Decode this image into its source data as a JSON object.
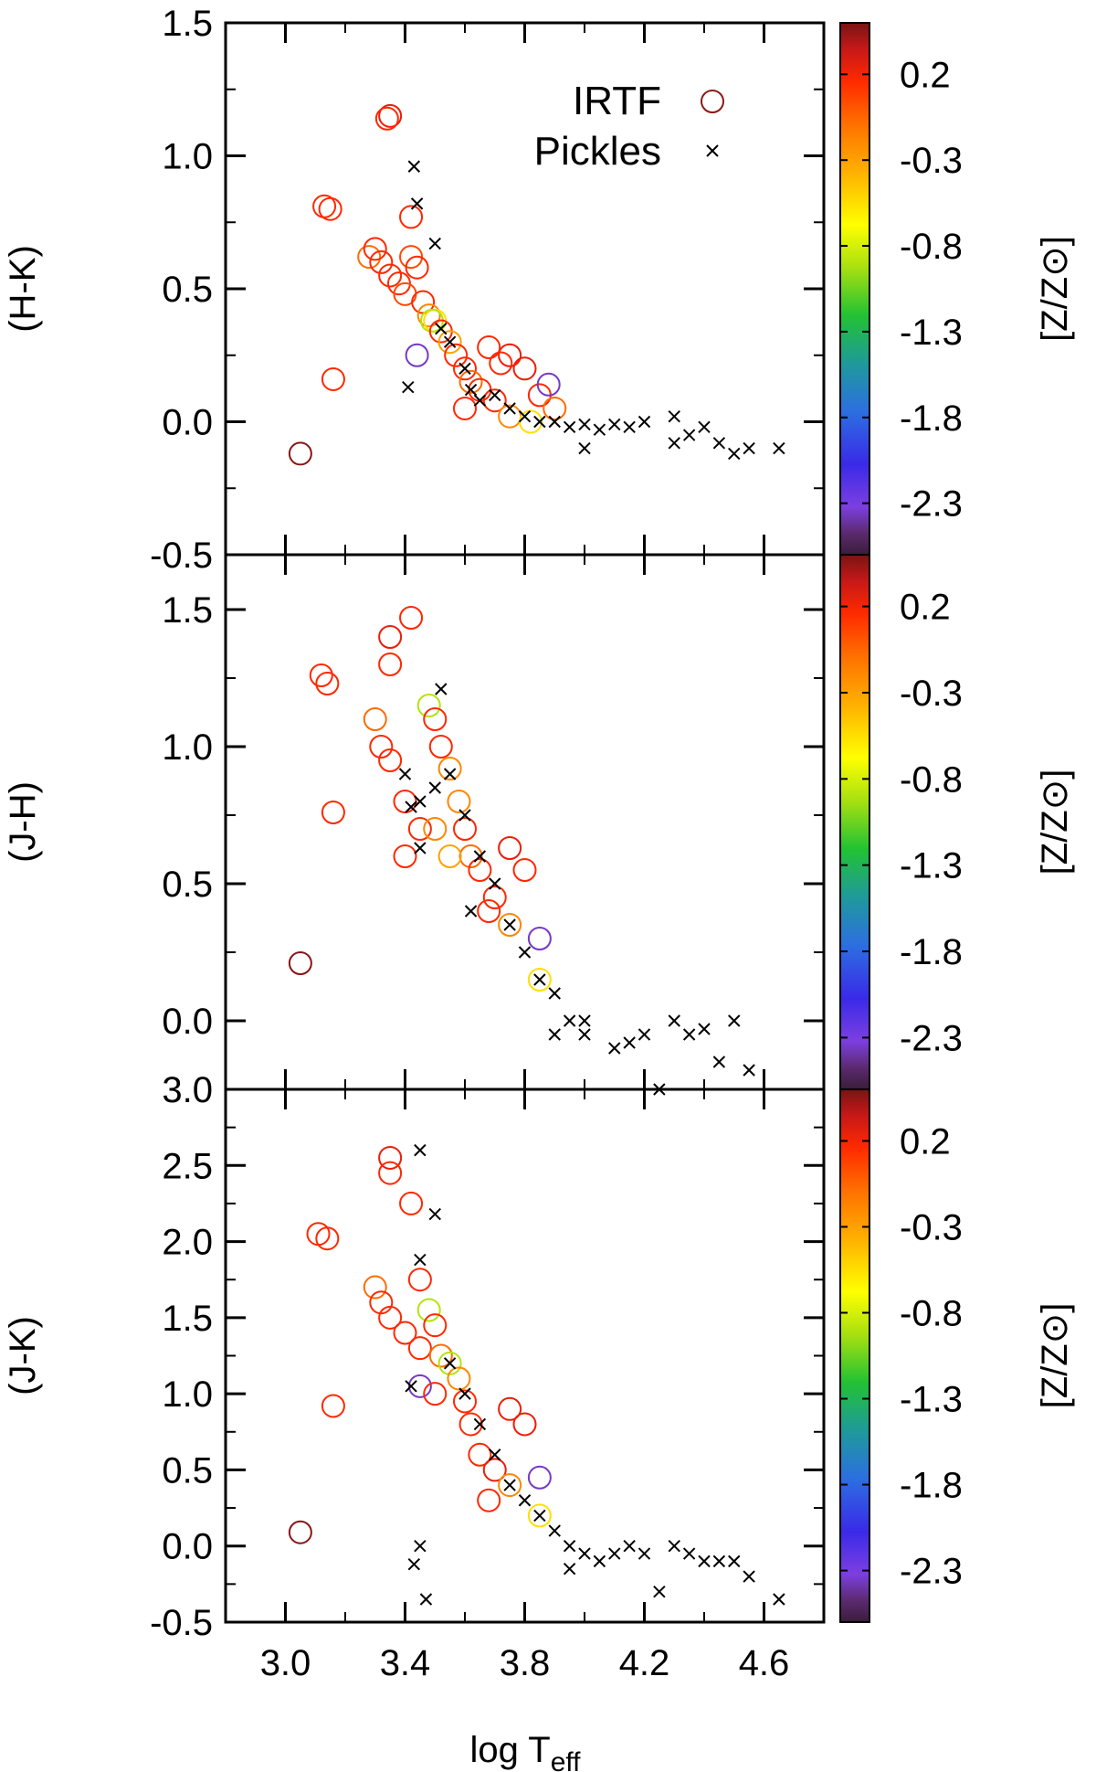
{
  "chart_data": [
    {
      "type": "scatter",
      "panel": "top",
      "ylabel": "(H-K)",
      "xlabel": "",
      "xlim": [
        2.8,
        4.8
      ],
      "ylim": [
        -0.5,
        1.5
      ],
      "yticks": [
        "1.5",
        "1.0",
        "0.5",
        "0.0",
        "-0.5"
      ],
      "ytick_values": [
        1.5,
        1.0,
        0.5,
        0.0,
        -0.5
      ],
      "xticks": [],
      "xtick_values": [],
      "legend": {
        "position": "top-right",
        "entries": [
          "IRTF",
          "Pickles"
        ]
      },
      "colorbar": {
        "label": "[Z/Z⊙]",
        "ticks": [
          "0.2",
          "-0.3",
          "-0.8",
          "-1.3",
          "-1.8",
          "-2.3"
        ],
        "tick_values": [
          0.2,
          -0.3,
          -0.8,
          -1.3,
          -1.8,
          -2.3
        ],
        "range": [
          -2.6,
          0.5
        ]
      },
      "series": [
        {
          "name": "IRTF",
          "marker": "circle",
          "points": [
            [
              3.05,
              -0.12,
              0.45
            ],
            [
              3.15,
              0.8,
              0.0
            ],
            [
              3.13,
              0.81,
              0.0
            ],
            [
              3.16,
              0.16,
              0.0
            ],
            [
              3.35,
              1.15,
              0.1
            ],
            [
              3.34,
              1.14,
              0.0
            ],
            [
              3.28,
              0.62,
              -0.2
            ],
            [
              3.3,
              0.65,
              0.0
            ],
            [
              3.32,
              0.6,
              0.0
            ],
            [
              3.35,
              0.55,
              0.0
            ],
            [
              3.38,
              0.52,
              0.0
            ],
            [
              3.4,
              0.48,
              -0.1
            ],
            [
              3.42,
              0.62,
              -0.1
            ],
            [
              3.44,
              0.58,
              0.0
            ],
            [
              3.42,
              0.77,
              0.0
            ],
            [
              3.46,
              0.45,
              0.0
            ],
            [
              3.48,
              0.4,
              -0.3
            ],
            [
              3.5,
              0.38,
              -0.6
            ],
            [
              3.49,
              0.38,
              -0.9
            ],
            [
              3.52,
              0.34,
              0.0
            ],
            [
              3.55,
              0.3,
              -0.4
            ],
            [
              3.57,
              0.25,
              0.0
            ],
            [
              3.6,
              0.2,
              0.0
            ],
            [
              3.62,
              0.15,
              -0.2
            ],
            [
              3.65,
              0.12,
              0.0
            ],
            [
              3.7,
              0.08,
              0.0
            ],
            [
              3.72,
              0.22,
              0.0
            ],
            [
              3.75,
              0.25,
              0.1
            ],
            [
              3.8,
              0.2,
              0.1
            ],
            [
              3.85,
              0.1,
              0.0
            ],
            [
              3.9,
              0.05,
              -0.2
            ],
            [
              3.88,
              0.14,
              -2.2
            ],
            [
              3.44,
              0.25,
              -2.2
            ],
            [
              3.6,
              0.05,
              0.0
            ],
            [
              3.75,
              0.02,
              -0.3
            ],
            [
              3.82,
              0.0,
              -0.6
            ],
            [
              3.68,
              0.28,
              0.0
            ]
          ]
        },
        {
          "name": "Pickles",
          "marker": "x",
          "points": [
            [
              3.41,
              0.13
            ],
            [
              3.44,
              0.82
            ],
            [
              3.43,
              0.96
            ],
            [
              3.5,
              0.67
            ],
            [
              3.52,
              0.35
            ],
            [
              3.55,
              0.3
            ],
            [
              3.6,
              0.2
            ],
            [
              3.62,
              0.12
            ],
            [
              3.65,
              0.08
            ],
            [
              3.7,
              0.1
            ],
            [
              3.75,
              0.05
            ],
            [
              3.8,
              0.02
            ],
            [
              3.85,
              0.0
            ],
            [
              3.9,
              0.0
            ],
            [
              3.95,
              -0.02
            ],
            [
              4.0,
              -0.01
            ],
            [
              4.05,
              -0.03
            ],
            [
              4.1,
              -0.01
            ],
            [
              4.15,
              -0.02
            ],
            [
              4.2,
              0.0
            ],
            [
              4.3,
              0.02
            ],
            [
              4.35,
              -0.05
            ],
            [
              4.4,
              -0.02
            ],
            [
              4.45,
              -0.08
            ],
            [
              4.5,
              -0.12
            ],
            [
              4.55,
              -0.1
            ],
            [
              4.65,
              -0.1
            ],
            [
              4.0,
              -0.1
            ],
            [
              4.3,
              -0.08
            ]
          ]
        }
      ]
    },
    {
      "type": "scatter",
      "panel": "middle",
      "ylabel": "(J-H)",
      "xlabel": "",
      "xlim": [
        2.8,
        4.8
      ],
      "ylim": [
        -0.25,
        1.7
      ],
      "yticks": [
        "1.5",
        "1.0",
        "0.5",
        "0.0"
      ],
      "ytick_values": [
        1.5,
        1.0,
        0.5,
        0.0
      ],
      "xticks": [],
      "xtick_values": [],
      "colorbar": {
        "label": "[Z/Z⊙]",
        "ticks": [
          "0.2",
          "-0.3",
          "-0.8",
          "-1.3",
          "-1.8",
          "-2.3"
        ],
        "tick_values": [
          0.2,
          -0.3,
          -0.8,
          -1.3,
          -1.8,
          -2.3
        ],
        "range": [
          -2.6,
          0.5
        ]
      },
      "series": [
        {
          "name": "IRTF",
          "marker": "circle",
          "points": [
            [
              3.05,
              0.21,
              0.45
            ],
            [
              3.12,
              1.26,
              0.0
            ],
            [
              3.14,
              1.23,
              0.0
            ],
            [
              3.16,
              0.76,
              0.0
            ],
            [
              3.35,
              1.4,
              0.1
            ],
            [
              3.42,
              1.47,
              0.0
            ],
            [
              3.35,
              1.3,
              0.0
            ],
            [
              3.3,
              1.1,
              -0.2
            ],
            [
              3.32,
              1.0,
              0.0
            ],
            [
              3.35,
              0.95,
              0.0
            ],
            [
              3.4,
              0.8,
              0.0
            ],
            [
              3.45,
              0.7,
              0.0
            ],
            [
              3.48,
              1.15,
              -0.9
            ],
            [
              3.5,
              1.1,
              0.0
            ],
            [
              3.52,
              1.0,
              0.0
            ],
            [
              3.55,
              0.92,
              -0.3
            ],
            [
              3.58,
              0.8,
              -0.3
            ],
            [
              3.6,
              0.7,
              0.0
            ],
            [
              3.62,
              0.6,
              -0.2
            ],
            [
              3.65,
              0.55,
              0.0
            ],
            [
              3.7,
              0.45,
              0.0
            ],
            [
              3.75,
              0.35,
              -0.3
            ],
            [
              3.75,
              0.63,
              0.1
            ],
            [
              3.8,
              0.55,
              0.0
            ],
            [
              3.85,
              0.3,
              -2.2
            ],
            [
              3.85,
              0.15,
              -0.6
            ],
            [
              3.5,
              0.7,
              -0.3
            ],
            [
              3.55,
              0.6,
              -0.4
            ],
            [
              3.4,
              0.6,
              0.0
            ],
            [
              3.68,
              0.4,
              0.0
            ]
          ]
        },
        {
          "name": "Pickles",
          "marker": "x",
          "points": [
            [
              3.52,
              1.21
            ],
            [
              3.4,
              0.9
            ],
            [
              3.45,
              0.8
            ],
            [
              3.42,
              0.78
            ],
            [
              3.5,
              0.85
            ],
            [
              3.55,
              0.9
            ],
            [
              3.6,
              0.75
            ],
            [
              3.65,
              0.6
            ],
            [
              3.7,
              0.5
            ],
            [
              3.75,
              0.35
            ],
            [
              3.8,
              0.25
            ],
            [
              3.85,
              0.15
            ],
            [
              3.9,
              0.1
            ],
            [
              3.95,
              0.0
            ],
            [
              3.9,
              -0.05
            ],
            [
              4.0,
              -0.05
            ],
            [
              4.0,
              0.0
            ],
            [
              4.1,
              -0.1
            ],
            [
              4.15,
              -0.08
            ],
            [
              4.2,
              -0.05
            ],
            [
              4.25,
              -0.25
            ],
            [
              4.3,
              0.0
            ],
            [
              4.35,
              -0.05
            ],
            [
              4.4,
              -0.03
            ],
            [
              4.45,
              -0.15
            ],
            [
              4.5,
              0.0
            ],
            [
              4.55,
              -0.18
            ],
            [
              3.45,
              0.63
            ],
            [
              3.62,
              0.4
            ]
          ]
        }
      ]
    },
    {
      "type": "scatter",
      "panel": "bottom",
      "ylabel": "(J-K)",
      "xlabel": "log T",
      "xlabel_subscript": "eff",
      "xlim": [
        2.8,
        4.8
      ],
      "ylim": [
        -0.5,
        3.0
      ],
      "yticks": [
        "3.0",
        "2.5",
        "2.0",
        "1.5",
        "1.0",
        "0.5",
        "0.0",
        "-0.5"
      ],
      "ytick_values": [
        3.0,
        2.5,
        2.0,
        1.5,
        1.0,
        0.5,
        0.0,
        -0.5
      ],
      "xticks": [
        "3.0",
        "3.4",
        "3.8",
        "4.2",
        "4.6"
      ],
      "xtick_values": [
        3.0,
        3.4,
        3.8,
        4.2,
        4.6
      ],
      "colorbar": {
        "label": "[Z/Z⊙]",
        "ticks": [
          "0.2",
          "-0.3",
          "-0.8",
          "-1.3",
          "-1.8",
          "-2.3"
        ],
        "tick_values": [
          0.2,
          -0.3,
          -0.8,
          -1.3,
          -1.8,
          -2.3
        ],
        "range": [
          -2.6,
          0.5
        ]
      },
      "series": [
        {
          "name": "IRTF",
          "marker": "circle",
          "points": [
            [
              3.05,
              0.09,
              0.45
            ],
            [
              3.11,
              2.05,
              0.0
            ],
            [
              3.14,
              2.02,
              0.0
            ],
            [
              3.16,
              0.92,
              0.0
            ],
            [
              3.35,
              2.55,
              0.1
            ],
            [
              3.35,
              2.45,
              0.0
            ],
            [
              3.42,
              2.25,
              0.0
            ],
            [
              3.3,
              1.7,
              -0.2
            ],
            [
              3.32,
              1.6,
              0.0
            ],
            [
              3.35,
              1.5,
              0.0
            ],
            [
              3.4,
              1.4,
              0.0
            ],
            [
              3.45,
              1.75,
              0.0
            ],
            [
              3.45,
              1.3,
              0.0
            ],
            [
              3.48,
              1.55,
              -0.9
            ],
            [
              3.5,
              1.45,
              0.0
            ],
            [
              3.52,
              1.25,
              -0.2
            ],
            [
              3.55,
              1.2,
              -0.9
            ],
            [
              3.58,
              1.1,
              -0.3
            ],
            [
              3.6,
              0.95,
              0.0
            ],
            [
              3.62,
              0.8,
              0.0
            ],
            [
              3.65,
              0.6,
              0.0
            ],
            [
              3.7,
              0.5,
              0.1
            ],
            [
              3.75,
              0.4,
              -0.3
            ],
            [
              3.75,
              0.9,
              0.1
            ],
            [
              3.8,
              0.8,
              0.1
            ],
            [
              3.85,
              0.45,
              -2.2
            ],
            [
              3.85,
              0.2,
              -0.6
            ],
            [
              3.45,
              1.05,
              -2.2
            ],
            [
              3.5,
              1.0,
              0.0
            ],
            [
              3.68,
              0.3,
              0.0
            ]
          ]
        },
        {
          "name": "Pickles",
          "marker": "x",
          "points": [
            [
              3.43,
              -0.12
            ],
            [
              3.45,
              0.0
            ],
            [
              3.47,
              -0.35
            ],
            [
              3.45,
              2.6
            ],
            [
              3.5,
              2.18
            ],
            [
              3.45,
              1.88
            ],
            [
              3.55,
              1.2
            ],
            [
              3.6,
              1.0
            ],
            [
              3.65,
              0.8
            ],
            [
              3.7,
              0.6
            ],
            [
              3.75,
              0.4
            ],
            [
              3.8,
              0.3
            ],
            [
              3.85,
              0.2
            ],
            [
              3.9,
              0.1
            ],
            [
              3.95,
              -0.15
            ],
            [
              4.0,
              -0.05
            ],
            [
              4.05,
              -0.1
            ],
            [
              4.1,
              -0.05
            ],
            [
              4.15,
              0.0
            ],
            [
              4.2,
              -0.05
            ],
            [
              4.25,
              -0.3
            ],
            [
              4.3,
              0.0
            ],
            [
              4.35,
              -0.05
            ],
            [
              4.4,
              -0.1
            ],
            [
              4.45,
              -0.1
            ],
            [
              4.5,
              -0.1
            ],
            [
              4.55,
              -0.2
            ],
            [
              4.65,
              -0.35
            ],
            [
              3.42,
              1.05
            ],
            [
              3.95,
              0.0
            ]
          ]
        }
      ]
    }
  ],
  "colors": {
    "axis": "#000000",
    "pickles_marker": "#000000",
    "colorbar_stops": [
      "#3a1d3a",
      "#6a2c8c",
      "#7c3fe0",
      "#2a2ad8",
      "#2c6fe0",
      "#1f9a9a",
      "#22c233",
      "#a8e010",
      "#ffff00",
      "#ffb000",
      "#ff7000",
      "#ff2000",
      "#c81818",
      "#7a1414"
    ]
  }
}
